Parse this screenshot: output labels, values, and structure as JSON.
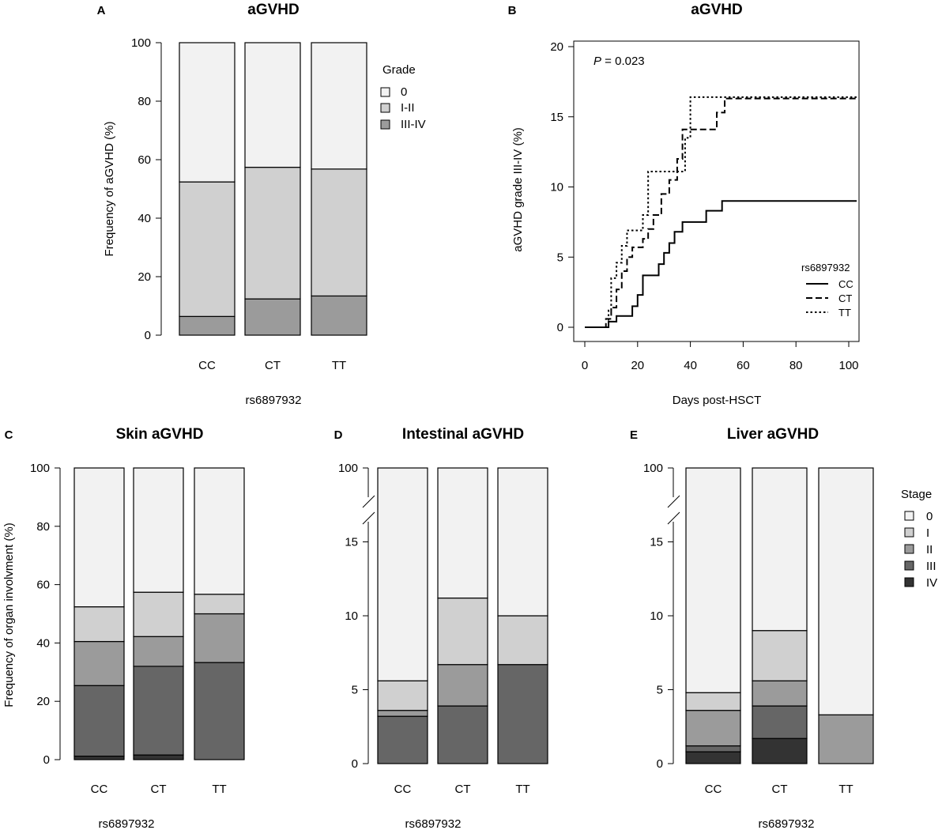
{
  "colors": {
    "grade_0": "#f2f2f2",
    "grade_I_II": "#d0d0d0",
    "grade_III_IV": "#9b9b9b",
    "stage_0": "#f2f2f2",
    "stage_I": "#d0d0d0",
    "stage_II": "#9b9b9b",
    "stage_III": "#666666",
    "stage_IV": "#333333"
  },
  "chart_data": [
    {
      "id": "A",
      "type": "bar",
      "letter": "A",
      "title": "aGVHD",
      "xlabel": "rs6897932",
      "ylabel": "Frequency of aGVHD (%)",
      "ylim": [
        0,
        100
      ],
      "yticks": [
        "0",
        "20",
        "40",
        "60",
        "80",
        "100"
      ],
      "categories": [
        "CC",
        "CT",
        "TT"
      ],
      "legend_title": "Grade",
      "legend_position": "right",
      "series": [
        {
          "name": "0",
          "values": [
            47.6,
            42.6,
            43.2
          ]
        },
        {
          "name": "I-II",
          "values": [
            46.0,
            45.0,
            43.4
          ]
        },
        {
          "name": "III-IV",
          "values": [
            6.4,
            12.4,
            13.4
          ]
        }
      ]
    },
    {
      "id": "B",
      "type": "line",
      "letter": "B",
      "title": "aGVHD",
      "xlabel": "Days post-HSCT",
      "ylabel": "aGVHD grade III-IV (%)",
      "xlim": [
        -3,
        103
      ],
      "ylim": [
        -1,
        20
      ],
      "xticks": [
        "0",
        "20",
        "40",
        "60",
        "80",
        "100"
      ],
      "yticks": [
        "0",
        "5",
        "10",
        "15",
        "20"
      ],
      "annotation_p": "P",
      "annotation_value": " = 0.023",
      "legend_title": "rs6897932",
      "legend_position": "bottom-right",
      "series": [
        {
          "name": "CC",
          "style": "solid",
          "x": [
            0,
            7,
            9,
            12,
            18,
            20,
            22,
            28,
            30,
            32,
            34,
            37,
            40,
            46,
            48,
            52,
            103
          ],
          "y": [
            0,
            0,
            0.4,
            0.8,
            1.5,
            2.3,
            3.7,
            4.5,
            5.3,
            6.0,
            6.8,
            7.5,
            7.5,
            8.3,
            8.3,
            9.0,
            9.0
          ]
        },
        {
          "name": "CT",
          "style": "dashed",
          "x": [
            0,
            7,
            8,
            10,
            12,
            14,
            16,
            18,
            22,
            24,
            26,
            29,
            32,
            35,
            37,
            41,
            50,
            53,
            103
          ],
          "y": [
            0,
            0,
            0.6,
            1.4,
            2.7,
            4.0,
            5.0,
            5.7,
            6.3,
            7.0,
            8.0,
            9.5,
            10.5,
            12.0,
            14.1,
            14.1,
            15.3,
            16.3,
            16.4
          ]
        },
        {
          "name": "TT",
          "style": "dotted",
          "x": [
            0,
            7,
            9,
            10,
            12,
            14,
            16,
            20,
            22,
            24,
            34,
            38,
            40,
            103
          ],
          "y": [
            0,
            0,
            1.2,
            3.5,
            4.6,
            5.8,
            6.9,
            6.9,
            8.0,
            11.1,
            11.1,
            13.5,
            16.4,
            16.4
          ]
        }
      ]
    },
    {
      "id": "C",
      "type": "bar",
      "letter": "C",
      "title": "Skin aGVHD",
      "xlabel": "rs6897932",
      "ylabel": "Frequency of organ involvment (%)",
      "ylim": [
        0,
        100
      ],
      "yticks": [
        "0",
        "20",
        "40",
        "60",
        "80",
        "100"
      ],
      "categories": [
        "CC",
        "CT",
        "TT"
      ],
      "series": [
        {
          "name": "0",
          "values": [
            47.6,
            42.6,
            43.3
          ]
        },
        {
          "name": "I",
          "values": [
            11.9,
            15.2,
            6.7
          ]
        },
        {
          "name": "II",
          "values": [
            15.1,
            10.2,
            16.7
          ]
        },
        {
          "name": "III",
          "values": [
            24.2,
            30.4,
            33.3
          ]
        },
        {
          "name": "IV",
          "values": [
            1.2,
            1.6,
            0
          ]
        }
      ]
    },
    {
      "id": "D",
      "type": "bar",
      "letter": "D",
      "title": "Intestinal aGVHD",
      "xlabel": "rs6897932",
      "ylabel": "",
      "ylim": [
        0,
        20
      ],
      "axis_break": true,
      "yticks": [
        "0",
        "5",
        "10",
        "15",
        "100"
      ],
      "categories": [
        "CC",
        "CT",
        "TT"
      ],
      "series": [
        {
          "name": "0",
          "values": [
            94.4,
            88.8,
            90.0
          ]
        },
        {
          "name": "I",
          "values": [
            2.0,
            4.5,
            3.3
          ]
        },
        {
          "name": "II",
          "values": [
            0.4,
            2.8,
            0
          ]
        },
        {
          "name": "III",
          "values": [
            3.2,
            3.9,
            6.7
          ]
        },
        {
          "name": "IV",
          "values": [
            0,
            0,
            0
          ]
        }
      ]
    },
    {
      "id": "E",
      "type": "bar",
      "letter": "E",
      "title": "Liver aGVHD",
      "xlabel": "rs6897932",
      "ylabel": "",
      "ylim": [
        0,
        20
      ],
      "axis_break": true,
      "yticks": [
        "0",
        "5",
        "10",
        "15",
        "100"
      ],
      "categories": [
        "CC",
        "CT",
        "TT"
      ],
      "legend_title": "Stage",
      "legend_position": "right",
      "series": [
        {
          "name": "0",
          "values": [
            95.2,
            91.0,
            96.7
          ]
        },
        {
          "name": "I",
          "values": [
            1.2,
            3.4,
            0
          ]
        },
        {
          "name": "II",
          "values": [
            2.4,
            1.7,
            3.3
          ]
        },
        {
          "name": "III",
          "values": [
            0.4,
            2.2,
            0
          ]
        },
        {
          "name": "IV",
          "values": [
            0.8,
            1.7,
            0
          ]
        }
      ]
    }
  ]
}
